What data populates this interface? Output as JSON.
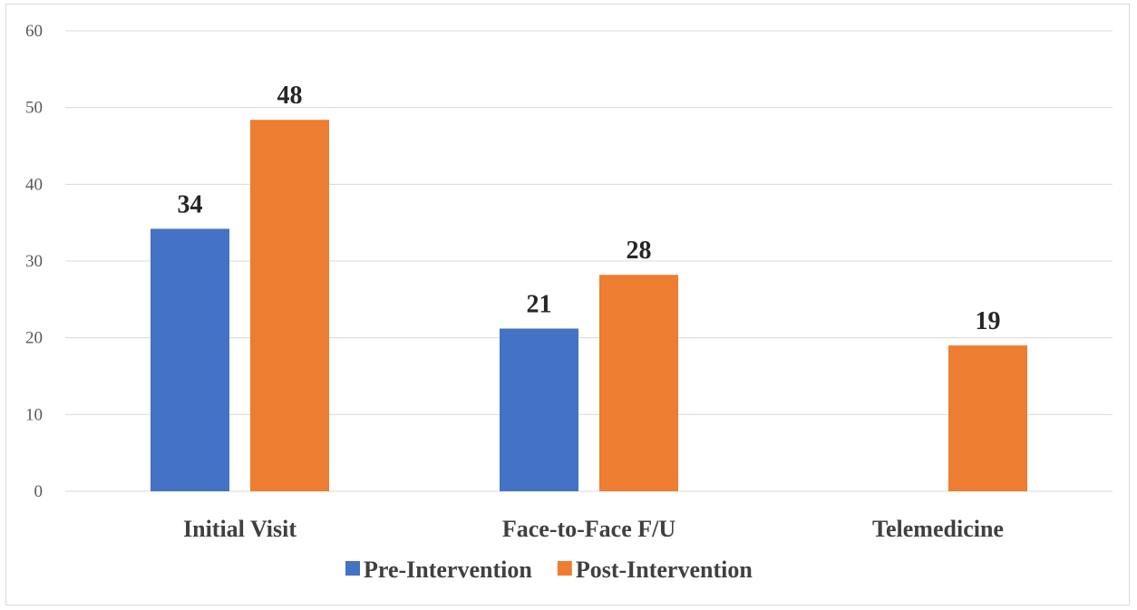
{
  "chart_data": {
    "type": "bar",
    "categories": [
      "Initial Visit",
      "Face-to-Face F/U",
      "Telemedicine"
    ],
    "series": [
      {
        "name": "Pre-Intervention",
        "color": "#4472c4",
        "values": [
          34.2,
          21.2,
          null
        ],
        "labels": [
          "34",
          "21",
          ""
        ]
      },
      {
        "name": "Post-Intervention",
        "color": "#ed7d31",
        "values": [
          48.4,
          28.2,
          19.0
        ],
        "labels": [
          "48",
          "28",
          "19"
        ]
      }
    ],
    "y_ticks": [
      "0",
      "10",
      "20",
      "30",
      "40",
      "50",
      "60"
    ],
    "ylim": [
      0,
      60
    ],
    "grid": true,
    "legend_position": "bottom",
    "title": "",
    "xlabel": "",
    "ylabel": ""
  }
}
